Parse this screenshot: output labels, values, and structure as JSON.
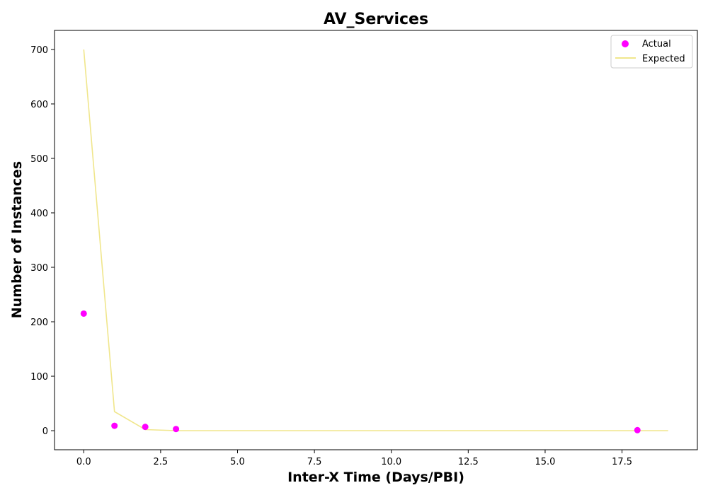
{
  "chart_data": {
    "type": "scatter",
    "title": "AV_Services",
    "xlabel": "Inter-X Time (Days/PBI)",
    "ylabel": "Number of Instances",
    "xlim": [
      -0.95,
      19.95
    ],
    "ylim": [
      -35,
      735
    ],
    "x_ticks": [
      0.0,
      2.5,
      5.0,
      7.5,
      10.0,
      12.5,
      15.0,
      17.5
    ],
    "x_tick_labels": [
      "0.0",
      "2.5",
      "5.0",
      "7.5",
      "10.0",
      "12.5",
      "15.0",
      "17.5"
    ],
    "y_ticks": [
      0,
      100,
      200,
      300,
      400,
      500,
      600,
      700
    ],
    "y_tick_labels": [
      "0",
      "100",
      "200",
      "300",
      "400",
      "500",
      "600",
      "700"
    ],
    "grid": false,
    "legend_position": "top-right",
    "series": [
      {
        "name": "Actual",
        "kind": "scatter",
        "color": "#ff00ff",
        "points": [
          {
            "x": 0,
            "y": 215
          },
          {
            "x": 1,
            "y": 9
          },
          {
            "x": 2,
            "y": 7
          },
          {
            "x": 3,
            "y": 3
          },
          {
            "x": 18,
            "y": 1
          }
        ]
      },
      {
        "name": "Expected",
        "kind": "line",
        "color": "#f0e68c",
        "points": [
          {
            "x": 0,
            "y": 700
          },
          {
            "x": 1,
            "y": 35
          },
          {
            "x": 2,
            "y": 2
          },
          {
            "x": 3,
            "y": 0.1
          },
          {
            "x": 4,
            "y": 0
          },
          {
            "x": 5,
            "y": 0
          },
          {
            "x": 6,
            "y": 0
          },
          {
            "x": 7,
            "y": 0
          },
          {
            "x": 8,
            "y": 0
          },
          {
            "x": 9,
            "y": 0
          },
          {
            "x": 10,
            "y": 0
          },
          {
            "x": 11,
            "y": 0
          },
          {
            "x": 12,
            "y": 0
          },
          {
            "x": 13,
            "y": 0
          },
          {
            "x": 14,
            "y": 0
          },
          {
            "x": 15,
            "y": 0
          },
          {
            "x": 16,
            "y": 0
          },
          {
            "x": 17,
            "y": 0
          },
          {
            "x": 18,
            "y": 0
          },
          {
            "x": 19,
            "y": 0
          }
        ]
      }
    ]
  }
}
